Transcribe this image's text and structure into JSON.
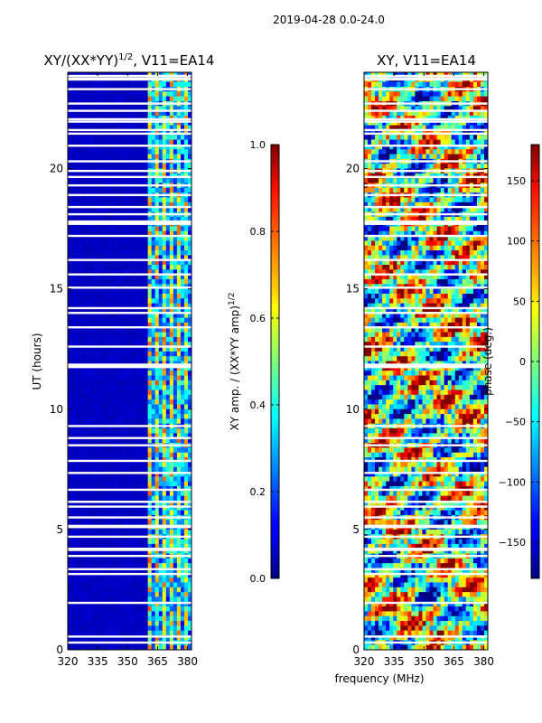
{
  "suptitle": "2019-04-28 0.0-24.0",
  "xlabel": "frequency (MHz)",
  "chart_data": [
    {
      "type": "heatmap",
      "title": "XY/(XX*YY)^{1/2}, V11=EA14",
      "title_parts": {
        "base": "XY/(XX*YY)",
        "sup": "1/2",
        "rest": ", V11=EA14"
      },
      "xlabel": "frequency (MHz)",
      "ylabel": "UT (hours)",
      "xlim": [
        320,
        382
      ],
      "ylim": [
        0,
        24
      ],
      "xticks": [
        320,
        335,
        350,
        365,
        380
      ],
      "yticks": [
        0,
        5,
        10,
        15,
        20
      ],
      "colormap": "jet",
      "colorbar": {
        "label_base": "XY amp. / (XX*YY amp)",
        "label_sup": "1/2",
        "range": [
          0.0,
          1.0
        ],
        "ticks": [
          "0.0",
          "0.2",
          "0.4",
          "0.6",
          "0.8",
          "1.0"
        ]
      },
      "description_values": {
        "low_band_MHz": [
          320,
          361
        ],
        "low_band_amplitude": 0.05,
        "high_band_MHz": [
          361,
          382
        ],
        "high_band_amplitude_range": [
          0.2,
          0.8
        ]
      }
    },
    {
      "type": "heatmap",
      "title": "XY, V11=EA14",
      "xlabel": "frequency (MHz)",
      "ylabel": "",
      "xlim": [
        320,
        382
      ],
      "ylim": [
        0,
        24
      ],
      "xticks": [
        320,
        335,
        350,
        365,
        380
      ],
      "yticks": [
        0,
        5,
        10,
        15,
        20
      ],
      "colormap": "jet",
      "colorbar": {
        "label": "phase (deg.)",
        "range": [
          -180,
          180
        ],
        "ticks": [
          "−150",
          "−100",
          "−50",
          "0",
          "50",
          "100",
          "150"
        ]
      }
    }
  ],
  "flag_rows_hours": [
    0.3,
    0.55,
    1.95,
    3.15,
    3.35,
    3.9,
    4.15,
    4.2,
    4.7,
    5.1,
    5.15,
    5.5,
    5.95,
    6.15,
    6.65,
    7.35,
    7.85,
    8.5,
    8.8,
    9.3,
    11.75,
    11.8,
    11.85,
    12.6,
    13.4,
    14.0,
    14.2,
    15.05,
    15.6,
    16.2,
    17.2,
    17.7,
    17.75,
    17.8,
    18.1,
    18.4,
    18.9,
    19.3,
    19.65,
    19.9,
    20.3,
    20.95,
    21.45,
    21.6,
    21.95,
    22.05,
    22.4,
    22.7,
    23.3,
    23.7,
    23.75,
    23.85
  ]
}
